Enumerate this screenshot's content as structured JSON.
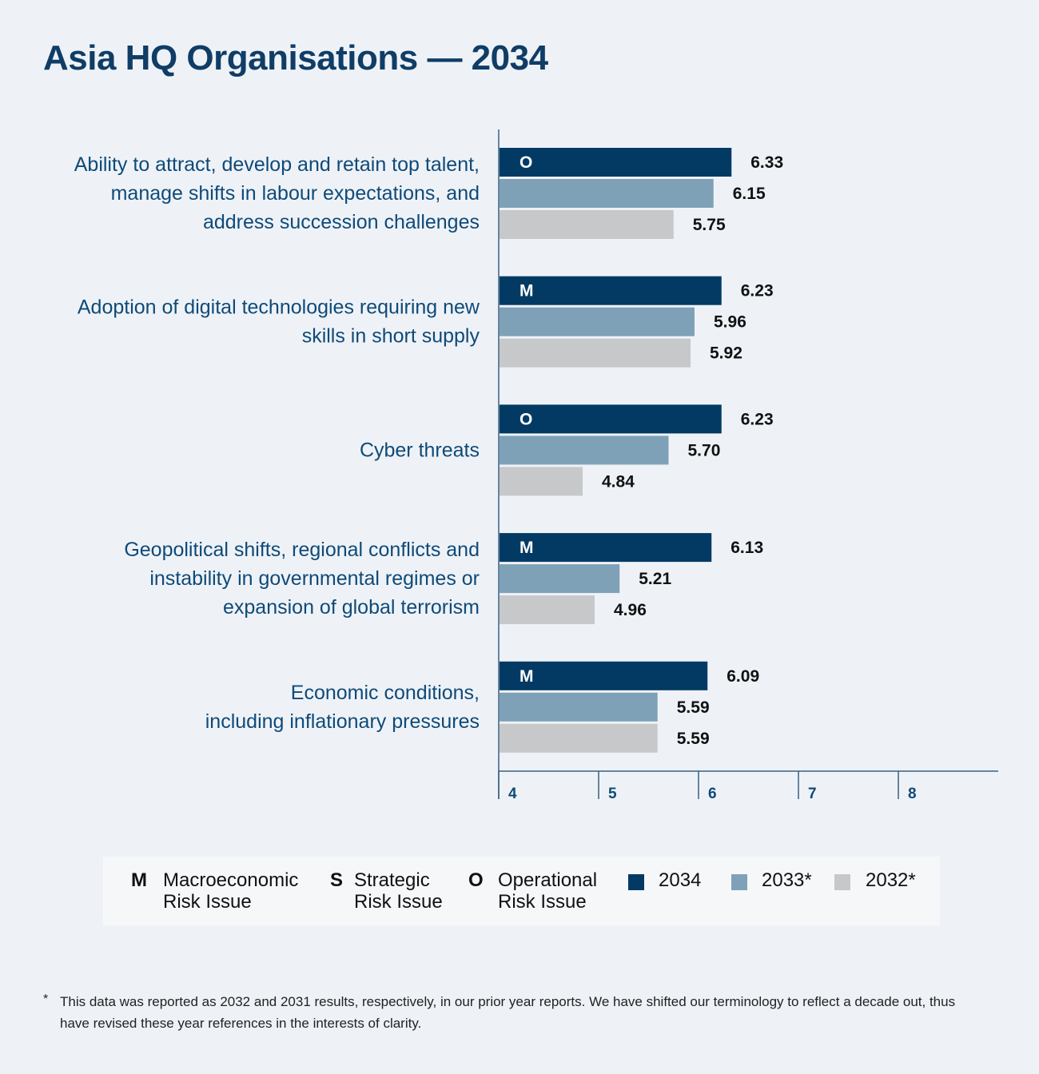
{
  "title": "Asia HQ Organisations — 2034",
  "colors": {
    "s2034": "#023a63",
    "s2033": "#7fa1b8",
    "s2032": "#c7c8ca",
    "axis": "#3a5f80"
  },
  "chart_data": {
    "type": "bar",
    "orientation": "horizontal",
    "title": "Asia HQ Organisations — 2034",
    "xlim": [
      4,
      8.5
    ],
    "xticks": [
      4,
      5,
      6,
      7,
      8
    ],
    "categories": [
      [
        "Ability to attract, develop and retain top talent,",
        "manage shifts in labour expectations, and",
        "address succession challenges"
      ],
      [
        "Adoption of digital technologies requiring new",
        "skills in short supply"
      ],
      [
        "Cyber threats"
      ],
      [
        "Geopolitical shifts, regional conflicts and",
        "instability in governmental regimes or",
        "expansion of global terrorism"
      ],
      [
        "Economic conditions,",
        "including inflationary pressures"
      ]
    ],
    "risk_codes": [
      "O",
      "M",
      "O",
      "M",
      "M"
    ],
    "series": [
      {
        "name": "2034",
        "values": [
          6.33,
          6.23,
          6.23,
          6.13,
          6.09
        ],
        "labels": [
          "6.33",
          "6.23",
          "6.23",
          "6.13",
          "6.09"
        ]
      },
      {
        "name": "2033*",
        "values": [
          6.15,
          5.96,
          5.7,
          5.21,
          5.59
        ],
        "labels": [
          "6.15",
          "5.96",
          "5.70",
          "5.21",
          "5.59"
        ]
      },
      {
        "name": "2032*",
        "values": [
          5.75,
          5.92,
          4.84,
          4.96,
          5.59
        ],
        "labels": [
          "5.75",
          "5.92",
          "4.84",
          "4.96",
          "5.59"
        ]
      }
    ]
  },
  "legend": {
    "risk_types": [
      {
        "code": "M",
        "text": "Macroeconomic\nRisk Issue"
      },
      {
        "code": "S",
        "text": "Strategic\nRisk Issue"
      },
      {
        "code": "O",
        "text": "Operational\nRisk Issue"
      }
    ],
    "years": [
      "2034",
      "2033*",
      "2032*"
    ]
  },
  "footnote": {
    "marker": "*",
    "text": "This data was reported as 2032 and 2031 results, respectively, in our prior year reports. We have shifted our terminology to reflect a decade out, thus have revised these year references in the interests of clarity."
  }
}
